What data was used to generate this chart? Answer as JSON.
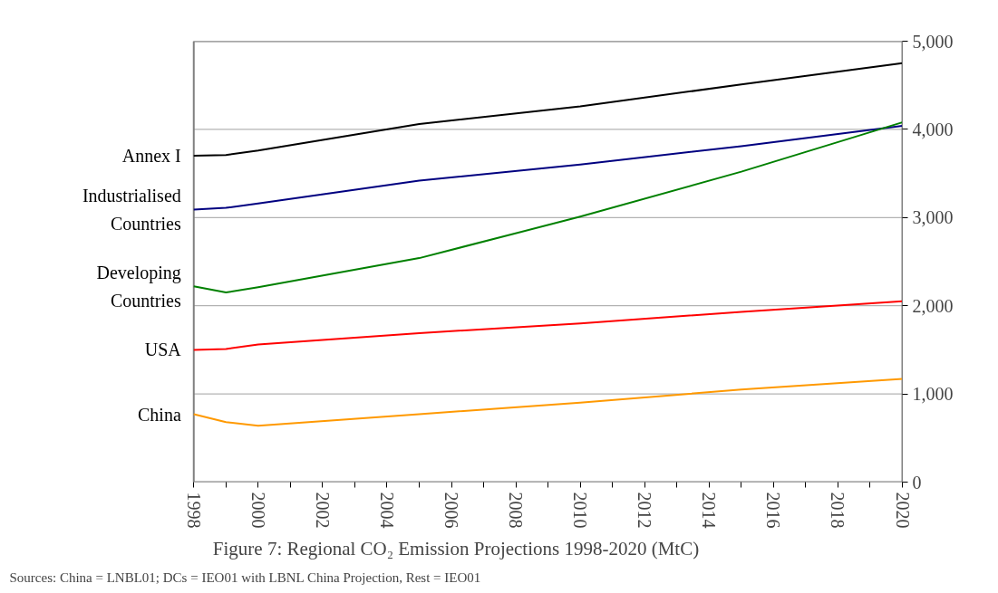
{
  "chart_data": {
    "type": "line",
    "title": "Figure 7: Regional CO₂ Emission Projections 1998-2020 (MtC)",
    "annotations": [
      "Sources: China = LNBL01; DCs = IEO01 with LBNL China Projection, Rest = IEO01"
    ],
    "x": [
      1998,
      1999,
      2000,
      2005,
      2010,
      2015,
      2020
    ],
    "series": [
      {
        "name": "Annex I",
        "color": "#000000",
        "values": [
          3700,
          3710,
          3760,
          4060,
          4260,
          4510,
          4750
        ]
      },
      {
        "name": "Industrialised Countries",
        "color": "#000080",
        "values": [
          3090,
          3110,
          3160,
          3420,
          3600,
          3810,
          4040
        ]
      },
      {
        "name": "Developing Countries",
        "color": "#008000",
        "values": [
          2220,
          2150,
          2210,
          2540,
          3010,
          3520,
          4080
        ]
      },
      {
        "name": "USA",
        "color": "#ff0000",
        "values": [
          1500,
          1510,
          1560,
          1690,
          1800,
          1930,
          2050
        ]
      },
      {
        "name": "China",
        "color": "#ff9900",
        "values": [
          770,
          680,
          640,
          770,
          900,
          1050,
          1170
        ]
      }
    ],
    "xlim": [
      1998,
      2020
    ],
    "xticks": [
      1998,
      {
        "value": 1999,
        "label": null
      },
      2000,
      {
        "value": 2001,
        "label": null
      },
      2002,
      {
        "value": 2003,
        "label": null
      },
      2004,
      {
        "value": 2005,
        "label": null
      },
      2006,
      {
        "value": 2007,
        "label": null
      },
      2008,
      {
        "value": 2009,
        "label": null
      },
      2010,
      {
        "value": 2011,
        "label": null
      },
      2012,
      {
        "value": 2013,
        "label": null
      },
      2014,
      {
        "value": 2015,
        "label": null
      },
      2016,
      {
        "value": 2017,
        "label": null
      },
      2018,
      {
        "value": 2019,
        "label": null
      },
      2020
    ],
    "ylim": [
      0,
      5000
    ],
    "yticks": [
      0,
      {
        "value": 1000,
        "label": "1,000"
      },
      {
        "value": 2000,
        "label": "2,000"
      },
      {
        "value": 3000,
        "label": "3,000"
      },
      {
        "value": 4000,
        "label": "4,000"
      },
      {
        "value": 5000,
        "label": "5,000"
      }
    ],
    "grid": "y",
    "legend": false,
    "marker": "none",
    "line_style": "solid"
  }
}
